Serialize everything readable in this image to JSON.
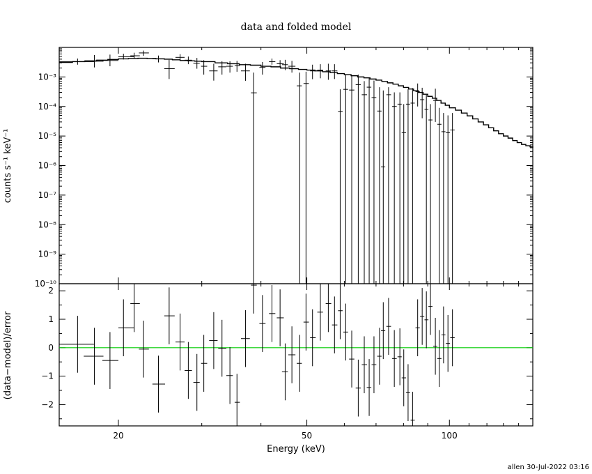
{
  "chart_data": [
    {
      "type": "scatter",
      "panel": "top",
      "title": "data and folded model",
      "ylabel": "counts s⁻¹ keV⁻¹",
      "yscale": "log",
      "xscale": "log",
      "xlim": [
        15,
        150
      ],
      "ylim": [
        1e-10,
        0.01
      ],
      "ytick_values": [
        1e-10,
        1e-09,
        1e-08,
        1e-07,
        1e-06,
        1e-05,
        0.0001,
        0.001
      ],
      "ytick_labels": [
        "10⁻¹⁰",
        "10⁻⁹",
        "10⁻⁸",
        "10⁻⁷",
        "10⁻⁶",
        "10⁻⁵",
        "10⁻⁴",
        "10⁻³"
      ],
      "model_color": "#000000",
      "model": {
        "x": [
          15,
          16,
          17,
          18,
          19,
          20,
          21,
          22,
          23,
          24,
          25,
          26,
          27,
          28,
          29,
          30,
          32,
          34,
          36,
          38,
          40,
          42,
          44,
          46,
          48,
          50,
          52,
          54,
          56,
          58,
          60,
          62,
          64,
          66,
          68,
          70,
          72,
          74,
          76,
          78,
          80,
          82,
          84,
          86,
          88,
          90,
          92,
          94,
          96,
          98,
          100,
          103,
          106,
          109,
          112,
          115,
          118,
          121,
          124,
          127,
          130,
          133,
          136,
          139,
          142,
          145,
          148,
          150
        ],
        "y": [
          0.0031,
          0.0033,
          0.0035,
          0.0037,
          0.0039,
          0.0041,
          0.0042,
          0.0043,
          0.0042,
          0.0041,
          0.004,
          0.0038,
          0.0036,
          0.0035,
          0.0034,
          0.0033,
          0.003,
          0.0028,
          0.0026,
          0.0025,
          0.0023,
          0.0022,
          0.002,
          0.0019,
          0.0018,
          0.0017,
          0.0016,
          0.0015,
          0.0014,
          0.0013,
          0.0012,
          0.0011,
          0.001,
          0.00093,
          0.00085,
          0.00078,
          0.0007,
          0.00063,
          0.00057,
          0.0005,
          0.00044,
          0.00039,
          0.00034,
          0.0003,
          0.00026,
          0.00022,
          0.00019,
          0.00016,
          0.00013,
          0.00011,
          9e-05,
          7.5e-05,
          6e-05,
          4.8e-05,
          3.8e-05,
          3e-05,
          2.4e-05,
          1.9e-05,
          1.5e-05,
          1.2e-05,
          1e-05,
          8.5e-06,
          7e-06,
          6e-06,
          5.2e-06,
          4.7e-06,
          4.3e-06,
          4e-06
        ]
      },
      "points": [
        {
          "x": 16.4,
          "xlo": 15,
          "xhi": 17.8,
          "y": 0.0033,
          "ylo": 0.0026,
          "yhi": 0.0042
        },
        {
          "x": 17.8,
          "xlo": 16.9,
          "xhi": 18.6,
          "y": 0.0034,
          "ylo": 0.0021,
          "yhi": 0.0055
        },
        {
          "x": 19.2,
          "xlo": 18.5,
          "xhi": 20,
          "y": 0.0036,
          "ylo": 0.0023,
          "yhi": 0.0057
        },
        {
          "x": 20.5,
          "xlo": 20,
          "xhi": 21.6,
          "y": 0.0048,
          "ylo": 0.0039,
          "yhi": 0.0061
        },
        {
          "x": 21.6,
          "xlo": 21.2,
          "xhi": 22.2,
          "y": 0.0052,
          "ylo": 0.0041,
          "yhi": 0.0066
        },
        {
          "x": 22.6,
          "xlo": 22.1,
          "xhi": 23.2,
          "y": 0.0065,
          "ylo": 0.0052,
          "yhi": 0.0078
        },
        {
          "x": 24.3,
          "xlo": 23.6,
          "xhi": 25.1,
          "y": 0.0041,
          "ylo": 0.0031,
          "yhi": 0.0053
        },
        {
          "x": 25.6,
          "xlo": 25,
          "xhi": 26.3,
          "y": 0.0019,
          "ylo": 0.00085,
          "yhi": 0.0038
        },
        {
          "x": 27,
          "xlo": 26.4,
          "xhi": 27.6,
          "y": 0.0046,
          "ylo": 0.0035,
          "yhi": 0.0059
        },
        {
          "x": 28.1,
          "xlo": 27.6,
          "xhi": 28.6,
          "y": 0.0037,
          "ylo": 0.0027,
          "yhi": 0.0049
        },
        {
          "x": 29.3,
          "xlo": 28.8,
          "xhi": 29.7,
          "y": 0.0029,
          "ylo": 0.0019,
          "yhi": 0.0044
        },
        {
          "x": 30.3,
          "xlo": 29.9,
          "xhi": 30.8,
          "y": 0.0023,
          "ylo": 0.0012,
          "yhi": 0.0037
        },
        {
          "x": 31.8,
          "xlo": 31.1,
          "xhi": 32.4,
          "y": 0.0016,
          "ylo": 0.00075,
          "yhi": 0.0028
        },
        {
          "x": 33.1,
          "xlo": 32.5,
          "xhi": 33.8,
          "y": 0.0022,
          "ylo": 0.0012,
          "yhi": 0.0034
        },
        {
          "x": 34.4,
          "xlo": 33.8,
          "xhi": 34.9,
          "y": 0.0023,
          "ylo": 0.0014,
          "yhi": 0.0034
        },
        {
          "x": 35.6,
          "xlo": 35.2,
          "xhi": 36.1,
          "y": 0.0024,
          "ylo": 0.0015,
          "yhi": 0.0035
        },
        {
          "x": 37.1,
          "xlo": 36.3,
          "xhi": 37.9,
          "y": 0.0016,
          "ylo": 0.00074,
          "yhi": 0.0028
        },
        {
          "x": 38.6,
          "xlo": 38.1,
          "xhi": 39.2,
          "y": 0.00029,
          "ylo": 1e-10,
          "yhi": 0.0014
        },
        {
          "x": 40.3,
          "xlo": 39.7,
          "xhi": 40.9,
          "y": 0.0021,
          "ylo": 0.0012,
          "yhi": 0.0032
        },
        {
          "x": 42.2,
          "xlo": 41.6,
          "xhi": 42.9,
          "y": 0.0033,
          "ylo": 0.0026,
          "yhi": 0.0042
        },
        {
          "x": 43.9,
          "xlo": 43.2,
          "xhi": 44.7,
          "y": 0.0028,
          "ylo": 0.0021,
          "yhi": 0.0037
        },
        {
          "x": 45,
          "xlo": 44.3,
          "xhi": 45.6,
          "y": 0.0026,
          "ylo": 0.0017,
          "yhi": 0.0038
        },
        {
          "x": 46.5,
          "xlo": 45.7,
          "xhi": 47.3,
          "y": 0.0023,
          "ylo": 0.0014,
          "yhi": 0.0035
        },
        {
          "x": 48.3,
          "xlo": 47.6,
          "xhi": 48.8,
          "y": 0.0005,
          "ylo": 1e-10,
          "yhi": 0.0014
        },
        {
          "x": 49.8,
          "xlo": 49.2,
          "xhi": 50.5,
          "y": 0.0006,
          "ylo": 1e-10,
          "yhi": 0.0015
        },
        {
          "x": 51.4,
          "xlo": 50.8,
          "xhi": 52.2,
          "y": 0.0016,
          "ylo": 0.00084,
          "yhi": 0.0026
        },
        {
          "x": 53.4,
          "xlo": 52.6,
          "xhi": 54.1,
          "y": 0.0017,
          "ylo": 0.0009,
          "yhi": 0.0027
        },
        {
          "x": 55.5,
          "xlo": 54.8,
          "xhi": 56.3,
          "y": 0.0016,
          "ylo": 0.0008,
          "yhi": 0.0028
        },
        {
          "x": 57.2,
          "xlo": 56.5,
          "xhi": 58,
          "y": 0.0016,
          "ylo": 0.00085,
          "yhi": 0.0027
        },
        {
          "x": 58.8,
          "xlo": 58.2,
          "xhi": 59.5,
          "y": 6.8e-05,
          "ylo": 1e-10,
          "yhi": 0.00038
        },
        {
          "x": 60.4,
          "xlo": 59.7,
          "xhi": 61.1,
          "y": 0.00038,
          "ylo": 1e-10,
          "yhi": 0.0012
        },
        {
          "x": 62.2,
          "xlo": 61.4,
          "xhi": 63,
          "y": 0.00036,
          "ylo": 1e-10,
          "yhi": 0.0011
        },
        {
          "x": 64.2,
          "xlo": 63.4,
          "xhi": 65,
          "y": 0.00055,
          "ylo": 1e-10,
          "yhi": 0.0012
        },
        {
          "x": 66.1,
          "xlo": 65.3,
          "xhi": 67,
          "y": 0.00025,
          "ylo": 1e-10,
          "yhi": 0.00072
        },
        {
          "x": 67.7,
          "xlo": 66.9,
          "xhi": 68.4,
          "y": 0.00045,
          "ylo": 1e-10,
          "yhi": 0.00095
        },
        {
          "x": 69.3,
          "xlo": 68.5,
          "xhi": 70.1,
          "y": 0.0002,
          "ylo": 1e-10,
          "yhi": 0.00075
        },
        {
          "x": 71.2,
          "xlo": 70.4,
          "xhi": 71.9,
          "y": 7e-05,
          "ylo": 1e-10,
          "yhi": 0.00045
        },
        {
          "x": 72.5,
          "xlo": 71.7,
          "xhi": 73.2,
          "y": 9e-07,
          "ylo": 1e-10,
          "yhi": 0.00035
        },
        {
          "x": 74.4,
          "xlo": 73.6,
          "xhi": 75.3,
          "y": 0.00025,
          "ylo": 1e-10,
          "yhi": 0.00045
        },
        {
          "x": 76.5,
          "xlo": 75.7,
          "xhi": 77.4,
          "y": 0.0001,
          "ylo": 1e-10,
          "yhi": 0.0003
        },
        {
          "x": 78.6,
          "xlo": 77.7,
          "xhi": 79.3,
          "y": 0.00012,
          "ylo": 1e-10,
          "yhi": 0.0003
        },
        {
          "x": 80.1,
          "xlo": 79.3,
          "xhi": 81,
          "y": 1.3e-05,
          "ylo": 1e-10,
          "yhi": 0.00012
        },
        {
          "x": 81.8,
          "xlo": 81,
          "xhi": 82.6,
          "y": 0.00012,
          "ylo": 1e-10,
          "yhi": 0.00038
        },
        {
          "x": 83.6,
          "xlo": 82.8,
          "xhi": 84.5,
          "y": 0.00013,
          "ylo": 1e-10,
          "yhi": 0.00042
        },
        {
          "x": 85.7,
          "xlo": 84.8,
          "xhi": 86.6,
          "y": 0.00032,
          "ylo": 0.0001,
          "yhi": 0.0006
        },
        {
          "x": 87.6,
          "xlo": 86.7,
          "xhi": 88.5,
          "y": 0.00017,
          "ylo": 4e-05,
          "yhi": 0.00043
        },
        {
          "x": 89.4,
          "xlo": 88.6,
          "xhi": 90.3,
          "y": 8e-05,
          "ylo": 1e-10,
          "yhi": 0.00025
        },
        {
          "x": 91.2,
          "xlo": 90.3,
          "xhi": 92.1,
          "y": 3.5e-05,
          "ylo": 1e-10,
          "yhi": 0.00012
        },
        {
          "x": 93.4,
          "xlo": 92.4,
          "xhi": 94.3,
          "y": 0.00016,
          "ylo": 3e-05,
          "yhi": 0.0004
        },
        {
          "x": 95.2,
          "xlo": 94.3,
          "xhi": 96.2,
          "y": 2.5e-05,
          "ylo": 1e-10,
          "yhi": 9e-05
        },
        {
          "x": 97.2,
          "xlo": 96.2,
          "xhi": 98.1,
          "y": 1.4e-05,
          "ylo": 1e-10,
          "yhi": 6e-05
        },
        {
          "x": 99.3,
          "xlo": 98.3,
          "xhi": 100.3,
          "y": 1.3e-05,
          "ylo": 1e-10,
          "yhi": 5e-05
        },
        {
          "x": 101.5,
          "xlo": 100.4,
          "xhi": 102.6,
          "y": 1.6e-05,
          "ylo": 1e-10,
          "yhi": 6e-05
        }
      ]
    },
    {
      "type": "scatter",
      "panel": "bottom",
      "xlabel": "Energy (keV)",
      "ylabel": "(data−model)/error",
      "xscale": "log",
      "xlim": [
        15,
        150
      ],
      "ylim": [
        -2.75,
        2.25
      ],
      "xtick_values": [
        20,
        50,
        100
      ],
      "xtick_labels": [
        "20",
        "50",
        "100"
      ],
      "ytick_values": [
        -2,
        -1,
        0,
        1,
        2
      ],
      "ytick_labels": [
        "−2",
        "−1",
        "0",
        "1",
        "2"
      ],
      "zero_line_color": "#00cc00",
      "points": [
        {
          "x": 16.4,
          "xlo": 15,
          "xhi": 17.8,
          "y": 0.12,
          "err": 1
        },
        {
          "x": 17.8,
          "xlo": 16.9,
          "xhi": 18.6,
          "y": -0.3,
          "err": 1
        },
        {
          "x": 19.2,
          "xlo": 18.5,
          "xhi": 20,
          "y": -0.45,
          "err": 1
        },
        {
          "x": 20.5,
          "xlo": 20,
          "xhi": 21.6,
          "y": 0.7,
          "err": 1
        },
        {
          "x": 21.6,
          "xlo": 21.2,
          "xhi": 22.2,
          "y": 1.55,
          "err": 1
        },
        {
          "x": 22.6,
          "xlo": 22.1,
          "xhi": 23.2,
          "y": -0.05,
          "err": 1
        },
        {
          "x": 24.3,
          "xlo": 23.6,
          "xhi": 25.1,
          "y": -1.28,
          "err": 1
        },
        {
          "x": 25.6,
          "xlo": 25,
          "xhi": 26.3,
          "y": 1.12,
          "err": 1
        },
        {
          "x": 27,
          "xlo": 26.4,
          "xhi": 27.6,
          "y": 0.2,
          "err": 1
        },
        {
          "x": 28.1,
          "xlo": 27.6,
          "xhi": 28.6,
          "y": -0.8,
          "err": 1
        },
        {
          "x": 29.3,
          "xlo": 28.8,
          "xhi": 29.7,
          "y": -1.22,
          "err": 1
        },
        {
          "x": 30.3,
          "xlo": 29.9,
          "xhi": 30.8,
          "y": -0.55,
          "err": 1
        },
        {
          "x": 31.8,
          "xlo": 31.1,
          "xhi": 32.4,
          "y": 0.25,
          "err": 1
        },
        {
          "x": 33.1,
          "xlo": 32.5,
          "xhi": 33.8,
          "y": -0.02,
          "err": 1
        },
        {
          "x": 34.4,
          "xlo": 33.8,
          "xhi": 34.9,
          "y": -0.98,
          "err": 1
        },
        {
          "x": 35.6,
          "xlo": 35.2,
          "xhi": 36.1,
          "y": -1.92,
          "err": 1
        },
        {
          "x": 37.1,
          "xlo": 36.3,
          "xhi": 37.9,
          "y": 0.32,
          "err": 1
        },
        {
          "x": 38.6,
          "xlo": 38.1,
          "xhi": 39.2,
          "y": 2.2,
          "err": 1
        },
        {
          "x": 40.3,
          "xlo": 39.7,
          "xhi": 40.9,
          "y": 0.85,
          "err": 1
        },
        {
          "x": 42.2,
          "xlo": 41.6,
          "xhi": 42.9,
          "y": 1.2,
          "err": 1
        },
        {
          "x": 43.9,
          "xlo": 43.2,
          "xhi": 44.7,
          "y": 1.05,
          "err": 1
        },
        {
          "x": 45,
          "xlo": 44.3,
          "xhi": 45.6,
          "y": -0.85,
          "err": 1
        },
        {
          "x": 46.5,
          "xlo": 45.7,
          "xhi": 47.3,
          "y": -0.25,
          "err": 1
        },
        {
          "x": 48.3,
          "xlo": 47.6,
          "xhi": 48.8,
          "y": -0.55,
          "err": 1
        },
        {
          "x": 49.8,
          "xlo": 49.2,
          "xhi": 50.5,
          "y": 0.9,
          "err": 1
        },
        {
          "x": 51.4,
          "xlo": 50.8,
          "xhi": 52.2,
          "y": 0.35,
          "err": 1
        },
        {
          "x": 53.4,
          "xlo": 52.6,
          "xhi": 54.1,
          "y": 1.25,
          "err": 1
        },
        {
          "x": 55.5,
          "xlo": 54.8,
          "xhi": 56.3,
          "y": 1.55,
          "err": 1
        },
        {
          "x": 57.2,
          "xlo": 56.5,
          "xhi": 58,
          "y": 0.8,
          "err": 1
        },
        {
          "x": 58.8,
          "xlo": 58.2,
          "xhi": 59.5,
          "y": 1.3,
          "err": 1
        },
        {
          "x": 60.4,
          "xlo": 59.7,
          "xhi": 61.1,
          "y": 0.55,
          "err": 1
        },
        {
          "x": 62.2,
          "xlo": 61.4,
          "xhi": 63,
          "y": -0.4,
          "err": 1
        },
        {
          "x": 64.2,
          "xlo": 63.4,
          "xhi": 65,
          "y": -1.42,
          "err": 1
        },
        {
          "x": 66.1,
          "xlo": 65.3,
          "xhi": 67,
          "y": -0.6,
          "err": 1
        },
        {
          "x": 67.7,
          "xlo": 66.9,
          "xhi": 68.4,
          "y": -1.4,
          "err": 1
        },
        {
          "x": 69.3,
          "xlo": 68.5,
          "xhi": 70.1,
          "y": -0.6,
          "err": 1
        },
        {
          "x": 71.2,
          "xlo": 70.4,
          "xhi": 71.9,
          "y": -0.3,
          "err": 1
        },
        {
          "x": 72.5,
          "xlo": 71.7,
          "xhi": 73.2,
          "y": 0.6,
          "err": 1
        },
        {
          "x": 74.4,
          "xlo": 73.6,
          "xhi": 75.3,
          "y": 0.75,
          "err": 1
        },
        {
          "x": 76.5,
          "xlo": 75.7,
          "xhi": 77.4,
          "y": -0.38,
          "err": 1
        },
        {
          "x": 78.6,
          "xlo": 77.7,
          "xhi": 79.3,
          "y": -0.32,
          "err": 1
        },
        {
          "x": 80.1,
          "xlo": 79.3,
          "xhi": 81,
          "y": -1.06,
          "err": 1
        },
        {
          "x": 81.8,
          "xlo": 81,
          "xhi": 82.6,
          "y": -1.58,
          "err": 1
        },
        {
          "x": 83.6,
          "xlo": 82.8,
          "xhi": 84.5,
          "y": -2.55,
          "err": 1
        },
        {
          "x": 85.7,
          "xlo": 84.8,
          "xhi": 86.6,
          "y": 0.7,
          "err": 1
        },
        {
          "x": 87.6,
          "xlo": 86.7,
          "xhi": 88.5,
          "y": 1.1,
          "err": 1
        },
        {
          "x": 89.4,
          "xlo": 88.6,
          "xhi": 90.3,
          "y": 0.98,
          "err": 1
        },
        {
          "x": 91.2,
          "xlo": 90.3,
          "xhi": 92.1,
          "y": 1.45,
          "err": 1
        },
        {
          "x": 93.4,
          "xlo": 92.4,
          "xhi": 94.3,
          "y": 0.05,
          "err": 1
        },
        {
          "x": 95.2,
          "xlo": 94.3,
          "xhi": 96.2,
          "y": -0.38,
          "err": 1
        },
        {
          "x": 97.2,
          "xlo": 96.2,
          "xhi": 98.1,
          "y": 0.45,
          "err": 1
        },
        {
          "x": 99.3,
          "xlo": 98.3,
          "xhi": 100.3,
          "y": 0.15,
          "err": 1
        },
        {
          "x": 101.5,
          "xlo": 100.4,
          "xhi": 102.6,
          "y": 0.35,
          "err": 1
        }
      ]
    }
  ],
  "footer": {
    "user": "allen",
    "timestamp": "30-Jul-2022 03:16"
  }
}
